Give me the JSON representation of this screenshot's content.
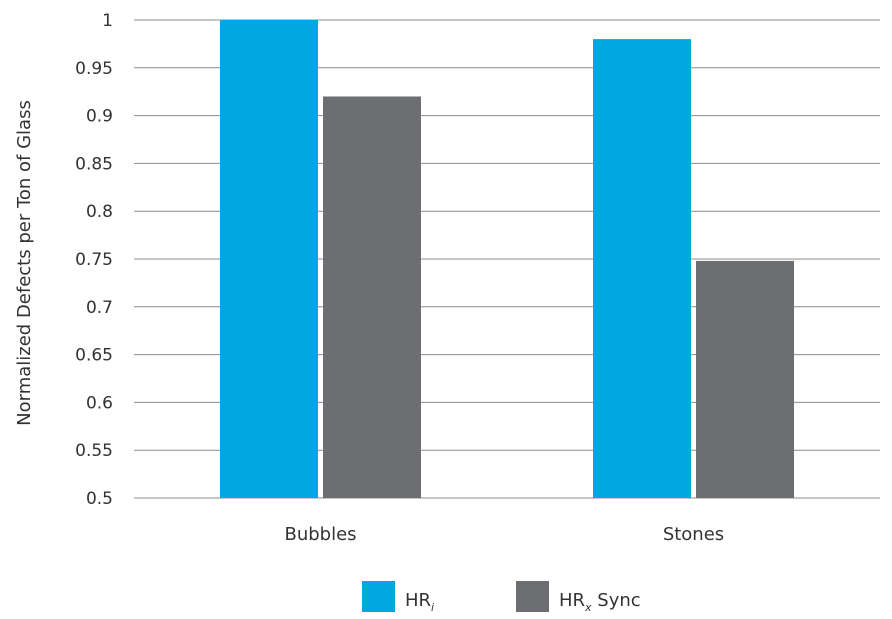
{
  "chart_data": {
    "type": "bar",
    "title": "",
    "xlabel": "",
    "ylabel": "Normalized Defects per Ton of Glass",
    "ylim": [
      0.5,
      1
    ],
    "yticks": [
      "0.5",
      "0.55",
      "0.6",
      "0.65",
      "0.7",
      "0.75",
      "0.8",
      "0.85",
      "0.9",
      "0.95",
      "1"
    ],
    "categories": [
      "Bubbles",
      "Stones"
    ],
    "grid": true,
    "legend_position": "bottom",
    "series": [
      {
        "name": "HRi",
        "legend_main": "HR",
        "legend_sub": "i",
        "legend_suffix": "",
        "color": "#00a7e1",
        "values": [
          1.0,
          0.98
        ]
      },
      {
        "name": "HRx Sync",
        "legend_main": "HR",
        "legend_sub": "x",
        "legend_suffix": " Sync",
        "color": "#6d6e71",
        "values": [
          0.92,
          0.748
        ]
      }
    ]
  }
}
